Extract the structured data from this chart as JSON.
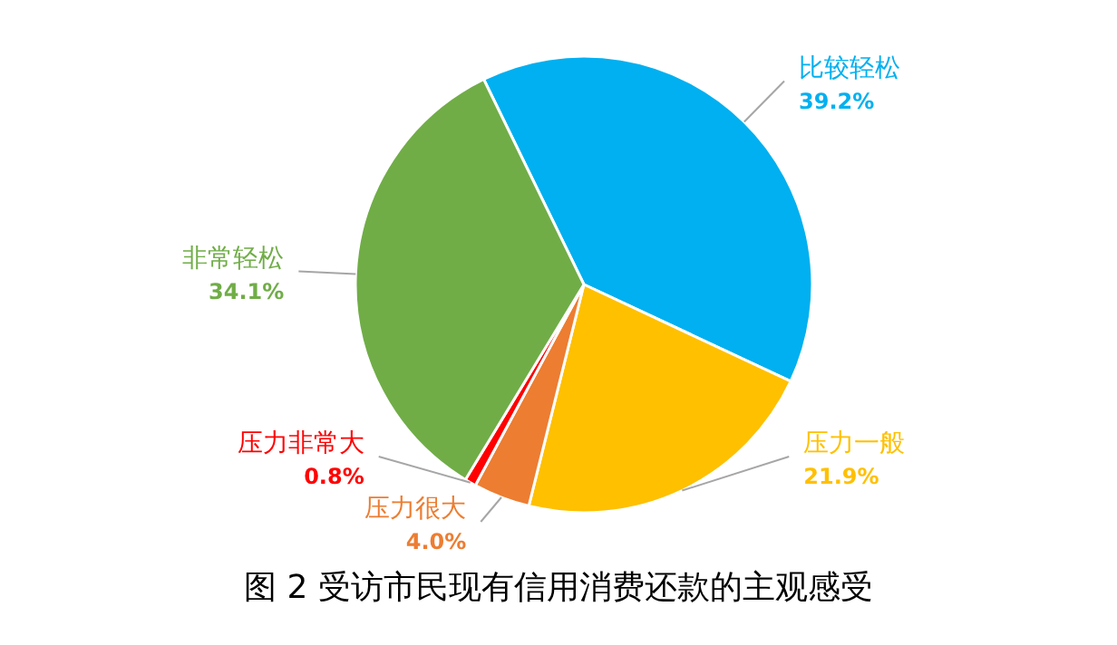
{
  "chart_data": {
    "type": "pie",
    "title": "图 2  受访市民现有信用消费还款的主观感受",
    "categories": [
      "比较轻松",
      "压力一般",
      "压力很大",
      "压力非常大",
      "非常轻松"
    ],
    "values": [
      39.2,
      21.9,
      4.0,
      0.8,
      34.1
    ],
    "value_labels": [
      "39.2%",
      "21.9%",
      "4.0%",
      "0.8%",
      "34.1%"
    ],
    "colors": [
      "#00b0f0",
      "#ffc000",
      "#ed7d31",
      "#ff0000",
      "#70ad47"
    ],
    "legend": false
  }
}
